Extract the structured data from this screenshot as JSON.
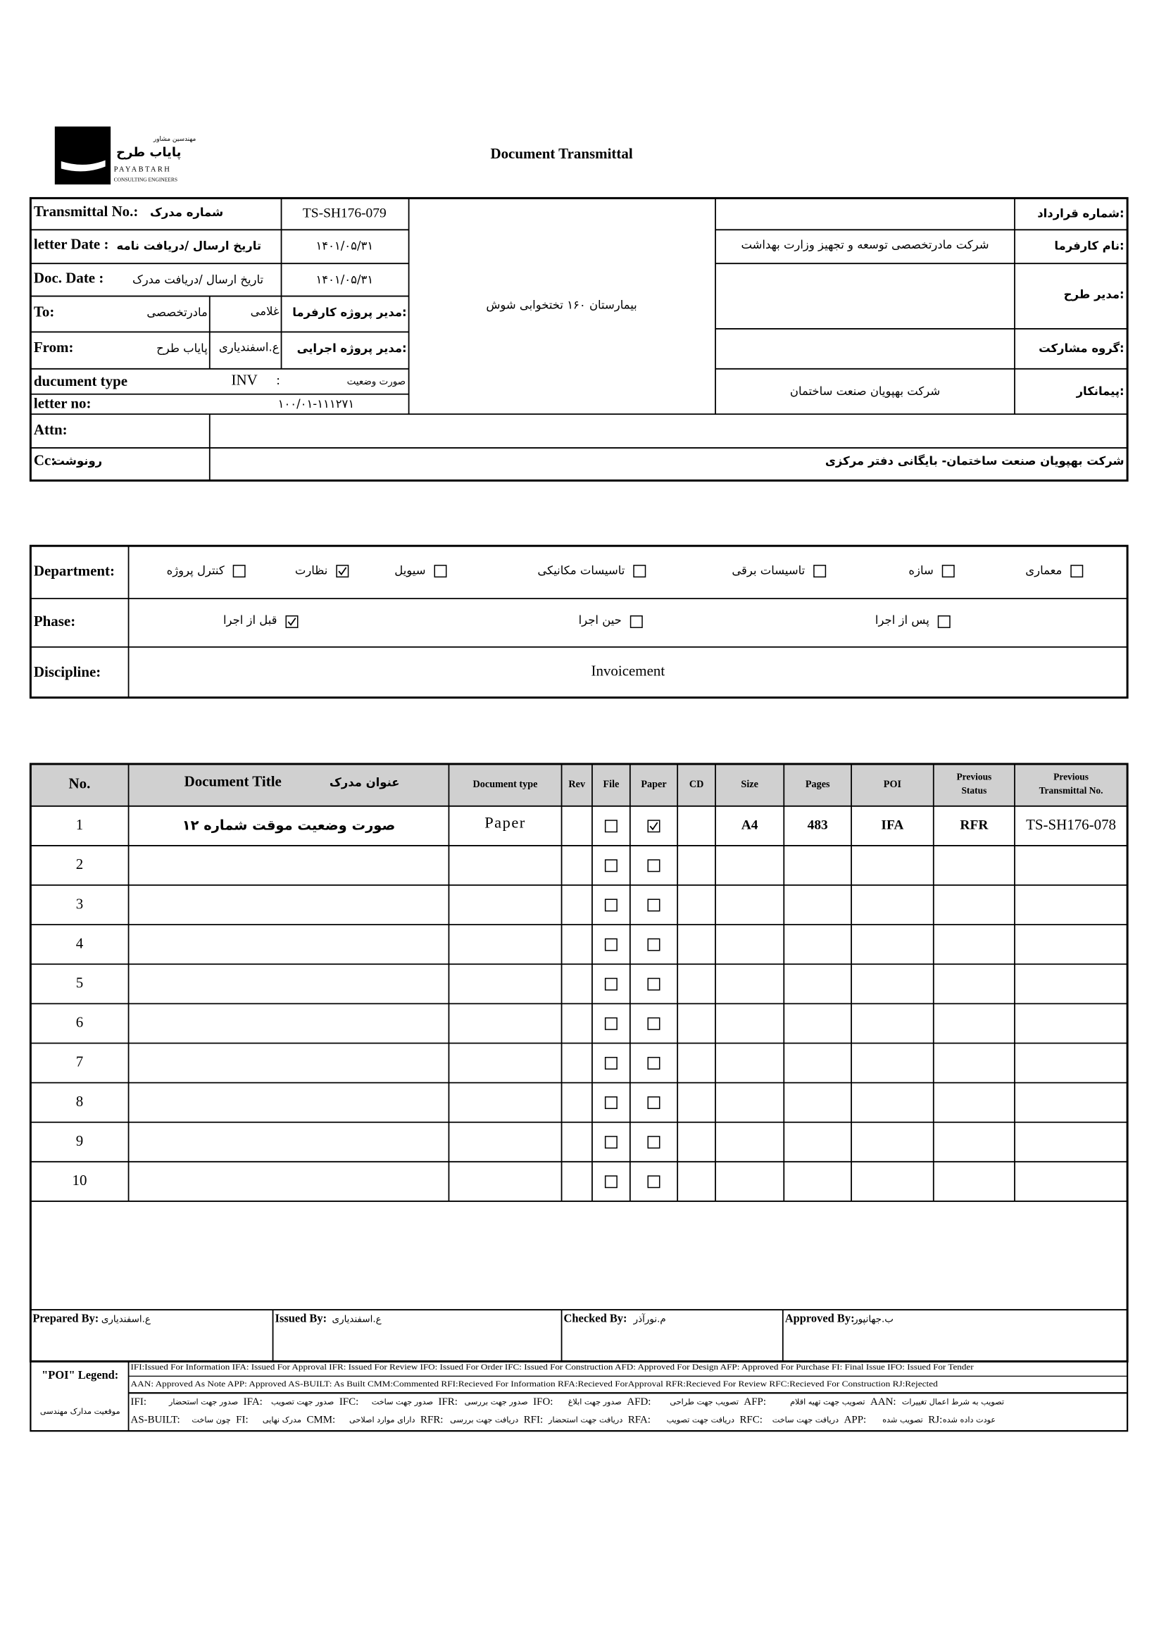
{
  "header": {
    "title": "Document Transmittal",
    "logo_fa_top": "مهندسین مشاور",
    "logo_fa_name": "پایاب طرح",
    "logo_en": "PAYABTARH",
    "logo_sub": "CONSULTING ENGINEERS"
  },
  "info": {
    "transmittal_no_label": "Transmittal No.:",
    "transmittal_no_label_fa": "شماره مدرک",
    "transmittal_no": "TS-SH176-079",
    "letter_date_label": "letter Date :",
    "letter_date_label_fa": "تاریخ ارسال /دریافت نامه",
    "letter_date": "۱۴۰۱/۰۵/۳۱",
    "doc_date_label": "Doc. Date :",
    "doc_date_label_fa": "تاریخ ارسال /دریافت مدرک",
    "doc_date": "۱۴۰۱/۰۵/۳۱",
    "to_label": "To:",
    "to": "مادرتخصصی",
    "to_person": "غلامی",
    "client_pm_label": "مدیر پروژه کارفرما:",
    "from_label": "From:",
    "from": "پایاب طرح",
    "from_person": "ع.اسفندیاری",
    "exec_pm_label": "مدیر پروژه اجرایی:",
    "doc_type_label": "ducument type",
    "doc_type": "INV",
    "doc_type_sep": ":",
    "doc_type_fa": "صورت وضعیت",
    "letter_no_label": "letter no:",
    "letter_no": "۱۰۰/۰۱-۱۱۱۲۷۱",
    "project": "بیمارستان ۱۶۰ تختخوابی شوش",
    "contract_no_label": "شماره قرارداد:",
    "client_label": "نام کارفرما:",
    "client": "شرکت مادرتخصصی توسعه و تجهیز وزارت بهداشت",
    "designer_label": "مدیر طرح:",
    "partnership_label": "گروه مشارکت:",
    "contractor_label": "پیمانکار:",
    "contractor": "شرکت بهپویان صنعت ساختمان",
    "attn_label": "Attn:",
    "cc_label": "Cc:",
    "cc_label_fa": "رونوشت",
    "cc": "شرکت بهپویان صنعت ساختمان- بایگانی دفتر مرکزی"
  },
  "classification": {
    "department_label": "Department:",
    "departments": [
      {
        "label": "معماری",
        "checked": false
      },
      {
        "label": "سازه",
        "checked": false
      },
      {
        "label": "تاسیسات برقی",
        "checked": false
      },
      {
        "label": "تاسیسات مکانیکی",
        "checked": false
      },
      {
        "label": "سیویل",
        "checked": false
      },
      {
        "label": "نظارت",
        "checked": true
      },
      {
        "label": "کنترل پروژه",
        "checked": false
      }
    ],
    "phase_label": "Phase:",
    "phases": [
      {
        "label": "پس از اجرا",
        "checked": false
      },
      {
        "label": "حین اجرا",
        "checked": false
      },
      {
        "label": "قبل از اجرا",
        "checked": true
      }
    ],
    "discipline_label": "Discipline:",
    "discipline": "Invoicement"
  },
  "table": {
    "columns": [
      "No.",
      [
        "Document Title",
        "عنوان مدرک"
      ],
      "Document type",
      "Rev",
      "File",
      "Paper",
      "CD",
      "Size",
      "Pages",
      "POI",
      [
        "Previous",
        "Status"
      ],
      [
        "Previous",
        "Transmittal No."
      ]
    ],
    "rows": [
      {
        "no": 1,
        "title": "صورت وضعیت موقت شماره ۱۲",
        "type": "Paper",
        "file": false,
        "paper": true,
        "size": "A4",
        "pages": 483,
        "poi": "IFA",
        "prev_status": "RFR",
        "prev_no": "TS-SH176-078"
      },
      {
        "no": 2,
        "file": false,
        "paper": false
      },
      {
        "no": 3,
        "file": false,
        "paper": false
      },
      {
        "no": 4,
        "file": false,
        "paper": false
      },
      {
        "no": 5,
        "file": false,
        "paper": false
      },
      {
        "no": 6,
        "file": false,
        "paper": false
      },
      {
        "no": 7,
        "file": false,
        "paper": false
      },
      {
        "no": 8,
        "file": false,
        "paper": false
      },
      {
        "no": 9,
        "file": false,
        "paper": false
      },
      {
        "no": 10,
        "file": false,
        "paper": false
      }
    ]
  },
  "signatures": [
    {
      "label": "Prepared By:",
      "name": "ع.اسفندیاری"
    },
    {
      "label": "Issued By:",
      "name": "ع.اسفندیاری"
    },
    {
      "label": "Checked By:",
      "name": "م.نورآذر"
    },
    {
      "label": "Approved By:",
      "name": "ب.جهانپور"
    }
  ],
  "legend": {
    "title": "\"POI\" Legend:",
    "location_fa": "موقعیت مدارک مهندسی",
    "lines_en": [
      "IFI:Issued For Information  IFA: Issued For Approval  IFR: Issued For Review   IFO: Issued For Order  IFC: Issued For Construction AFD: Approved For Design AFP: Approved For Purchase  FI: Final Issue  IFO: Issued For Tender",
      "AAN: Approved As Note  APP: Approved  AS-BUILT: As Built CMM:Commented  RFI:Recieved For Information   RFA:Recieved ForApproval   RFR:Recieved For Review  RFC:Recieved For Construction  RJ:Rejected"
    ],
    "lines_fa": [
      [
        {
          "code": "IFI:",
          "text": "صدور جهت استحضار"
        },
        {
          "code": "IFA:",
          "text": "صدور جهت تصویب"
        },
        {
          "code": "IFC:",
          "text": "صدور جهت ساخت"
        },
        {
          "code": "IFR:",
          "text": "صدور جهت بررسی"
        },
        {
          "code": "IFO:",
          "text": "صدور جهت ابلاغ"
        },
        {
          "code": "AFD:",
          "text": "تصویب جهت طراحی"
        },
        {
          "code": "AFP:",
          "text": "تصویب جهت تهیه اقلام"
        },
        {
          "code": "AAN:",
          "text": "تصویب به شرط اعمال تغییرات"
        }
      ],
      [
        {
          "code": "AS-BUILT:",
          "text": "چون ساخت"
        },
        {
          "code": "FI:",
          "text": "مدرک نهایی"
        },
        {
          "code": "CMM:",
          "text": "دارای موارد اصلاحی"
        },
        {
          "code": "RFR:",
          "text": "دریافت جهت بررسی"
        },
        {
          "code": "RFI:",
          "text": "دریافت جهت استحضار"
        },
        {
          "code": "RFA:",
          "text": "دریافت جهت تصویب"
        },
        {
          "code": "RFC:",
          "text": "دریافت جهت ساخت"
        },
        {
          "code": "APP:",
          "text": "تصویب شده"
        },
        {
          "code": "RJ:",
          "text": "عودت داده شده"
        }
      ]
    ]
  }
}
